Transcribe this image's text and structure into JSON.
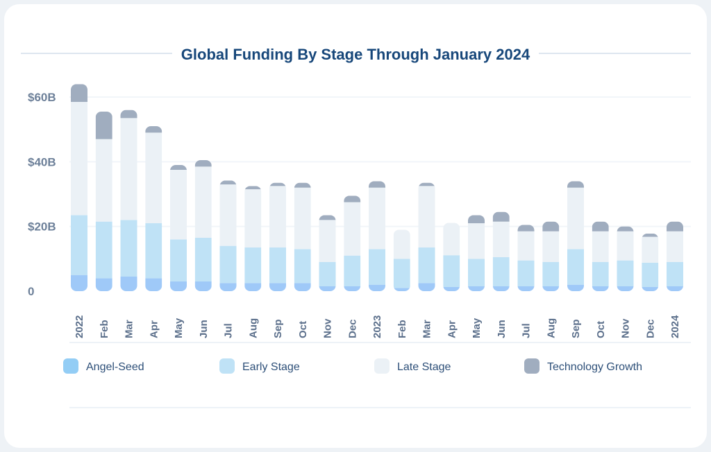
{
  "chart_data": {
    "type": "bar",
    "stacked": true,
    "title": "Global Funding By Stage Through January 2024",
    "xlabel": "",
    "ylabel": "",
    "ylim": [
      0,
      65
    ],
    "y_ticks": [
      {
        "value": 0,
        "label": "0"
      },
      {
        "value": 20,
        "label": "$20B"
      },
      {
        "value": 40,
        "label": "$40B"
      },
      {
        "value": 60,
        "label": "$60B"
      }
    ],
    "categories": [
      "2022",
      "Feb",
      "Mar",
      "Apr",
      "May",
      "Jun",
      "Jul",
      "Aug",
      "Sep",
      "Oct",
      "Nov",
      "Dec",
      "2023",
      "Feb",
      "Mar",
      "Apr",
      "May",
      "Jun",
      "Jul",
      "Aug",
      "Sep",
      "Oct",
      "Nov",
      "Dec",
      "2024"
    ],
    "series": [
      {
        "name": "Angel-Seed",
        "color": "#9fc9f8",
        "legend_color": "#93cdf5",
        "values": [
          5,
          4,
          4.5,
          4,
          3,
          3,
          2.5,
          2.5,
          2.5,
          2.5,
          1.5,
          1.5,
          2,
          1,
          2.5,
          1.3,
          1.5,
          1.5,
          1.5,
          1.5,
          2,
          1.5,
          1.5,
          1.3,
          1.5
        ]
      },
      {
        "name": "Early Stage",
        "color": "#bfe2f6",
        "legend_color": "#bfe2f6",
        "values": [
          18.5,
          17.5,
          17.5,
          17,
          13,
          13.5,
          11.5,
          11,
          11,
          10.5,
          7.5,
          9.5,
          11,
          9,
          11,
          9.8,
          8.5,
          9,
          8,
          7.5,
          11,
          7.5,
          8,
          7.5,
          7.5
        ]
      },
      {
        "name": "Late Stage",
        "color": "#ebf1f6",
        "legend_color": "#ebf1f6",
        "values": [
          35,
          25.5,
          31.5,
          28,
          21.5,
          22,
          19,
          18,
          19,
          19,
          13,
          16.5,
          19,
          9,
          19,
          10,
          11,
          11,
          9,
          9.5,
          19,
          9.5,
          9,
          8,
          9.5
        ]
      },
      {
        "name": "Technology Growth",
        "color": "#a0adbf",
        "legend_color": "#a0adbf",
        "values": [
          5.5,
          8.5,
          2.5,
          2,
          1.5,
          2,
          1.2,
          1,
          1,
          1.5,
          1.5,
          2,
          2,
          0,
          1,
          0,
          2.5,
          3,
          2,
          3,
          2,
          3,
          1.5,
          1,
          3
        ]
      }
    ],
    "grid": true,
    "legend_position": "bottom"
  }
}
